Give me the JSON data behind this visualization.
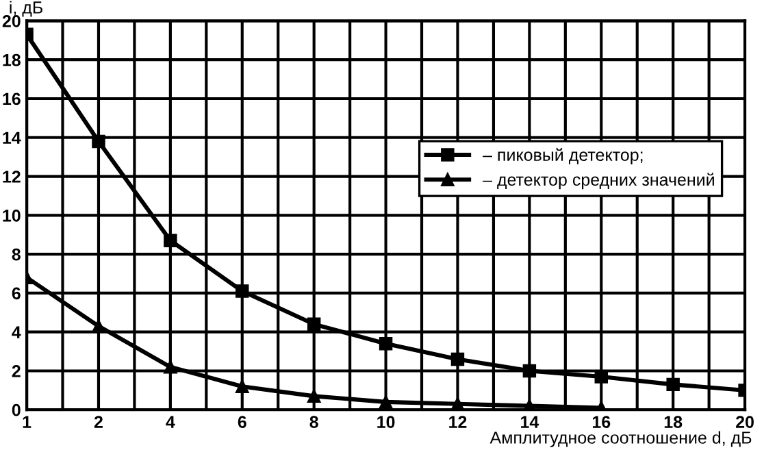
{
  "chart_data": {
    "type": "line",
    "ylabel": "i, дБ",
    "xlabel": "Амплитудное соотношение d, дБ",
    "categories": [
      "1",
      null,
      "2",
      null,
      "4",
      null,
      "6",
      null,
      "8",
      null,
      "10",
      null,
      "12",
      null,
      "14",
      null,
      "16",
      null,
      "18",
      null,
      "20"
    ],
    "series": [
      {
        "name": "– пиковый детектор;",
        "color": "#000000",
        "marker": "square",
        "values": [
          19.3,
          null,
          13.8,
          null,
          8.7,
          null,
          6.1,
          null,
          4.4,
          null,
          3.4,
          null,
          2.6,
          null,
          2.0,
          null,
          1.7,
          null,
          1.3,
          null,
          1.0
        ]
      },
      {
        "name": "– детектор средних значений",
        "color": "#000000",
        "marker": "triangle",
        "values": [
          6.8,
          null,
          4.3,
          null,
          2.2,
          null,
          1.2,
          null,
          0.7,
          null,
          0.4,
          null,
          0.3,
          null,
          0.2,
          null,
          0.1,
          null,
          null,
          null,
          null
        ]
      }
    ],
    "ylim": [
      0,
      20
    ],
    "yticks": [
      0,
      2,
      4,
      6,
      8,
      10,
      12,
      14,
      16,
      18,
      20
    ],
    "grid": true,
    "legend": "right",
    "line_style": "solid"
  }
}
